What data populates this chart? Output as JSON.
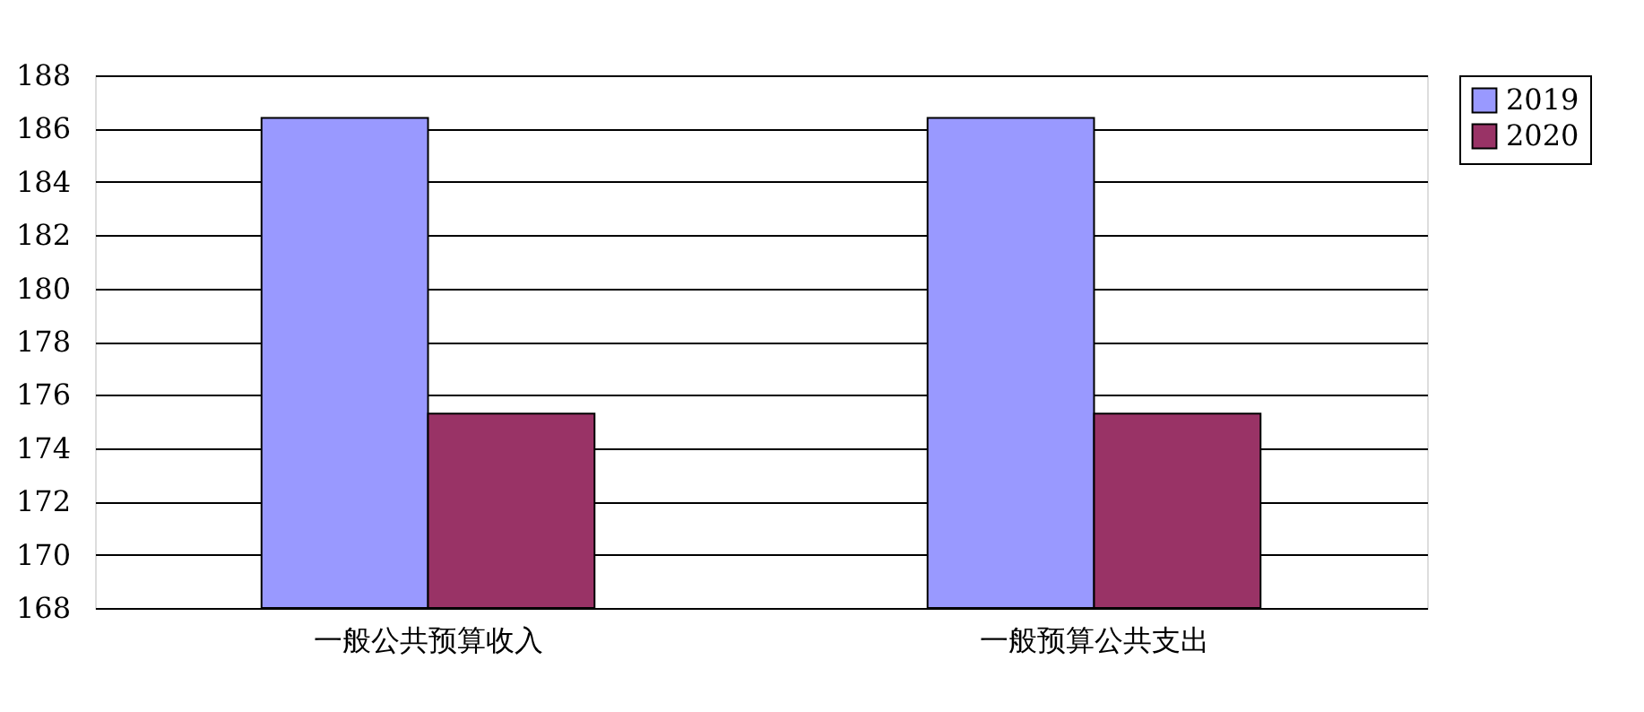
{
  "chart_data": {
    "type": "bar",
    "categories": [
      "一般公共预算收入",
      "一般预算公共支出"
    ],
    "series": [
      {
        "name": "2019",
        "color": "#9999ff",
        "values": [
          186.4,
          186.4
        ]
      },
      {
        "name": "2020",
        "color": "#993366",
        "values": [
          175.3,
          175.3
        ]
      }
    ],
    "ylim": [
      168,
      188
    ],
    "yticks": [
      168,
      170,
      172,
      174,
      176,
      178,
      180,
      182,
      184,
      186,
      188
    ],
    "grid": "y",
    "legend": "right"
  }
}
